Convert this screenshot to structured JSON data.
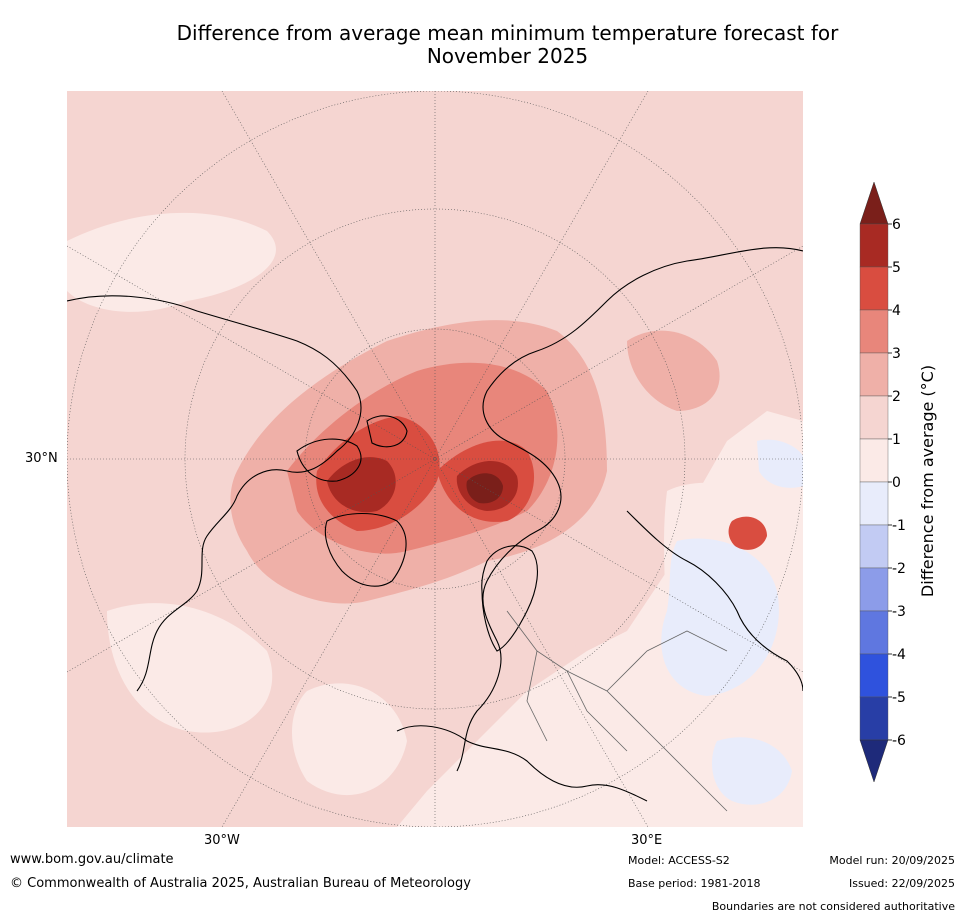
{
  "title_line1": "Difference from average mean minimum temperature forecast for",
  "title_line2": "November 2025",
  "axis_labels": {
    "lat": "30°N",
    "lon_west": "30°W",
    "lon_east": "30°E"
  },
  "colorbar": {
    "label": "Difference from average (°C)",
    "ticks": [
      "6",
      "5",
      "4",
      "3",
      "2",
      "1",
      "0",
      "-1",
      "-2",
      "-3",
      "-4",
      "-5",
      "-6"
    ],
    "colors": {
      "over": "#7a1f1a",
      "p5_6": "#a82a23",
      "p4_5": "#d94d40",
      "p3_4": "#e8867b",
      "p2_3": "#efb0a8",
      "p1_2": "#f5d5d1",
      "p0_1": "#fbeae7",
      "n0_1": "#e8ecfb",
      "n1_2": "#c2cbf3",
      "n2_3": "#8c9ce9",
      "n3_4": "#5f77e0",
      "n4_5": "#2f52dd",
      "n5_6": "#283ea6",
      "under": "#1e2a7a"
    }
  },
  "footer": {
    "url": "www.bom.gov.au/climate",
    "copyright": "© Commonwealth of Australia 2025, Australian Bureau of Meteorology",
    "model": "Model: ACCESS-S2",
    "base_period": "Base period: 1981-2018",
    "model_run": "Model run: 20/09/2025",
    "issued": "Issued: 22/09/2025",
    "disclaimer": "Boundaries are not considered authoritative"
  }
}
